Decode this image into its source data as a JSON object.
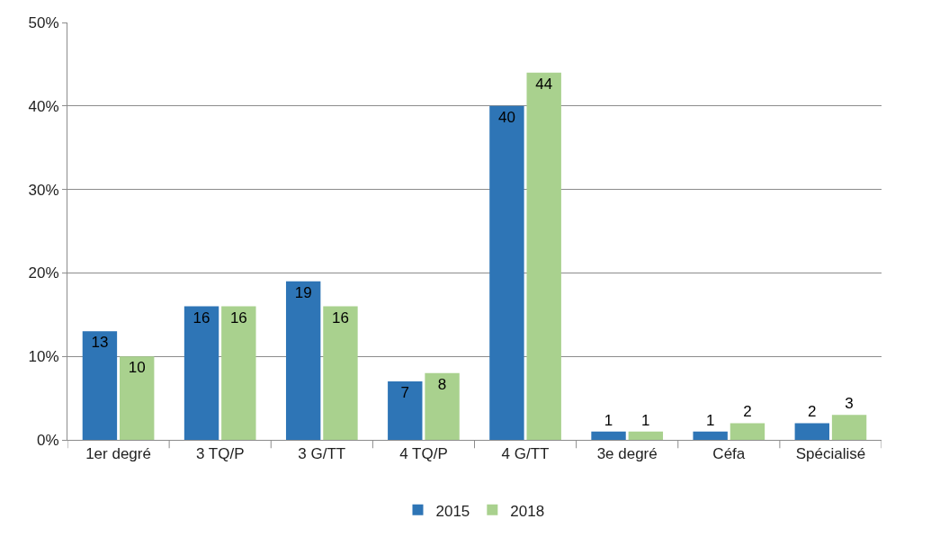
{
  "chart_data": {
    "type": "bar",
    "categories": [
      "1er degré",
      "3 TQ/P",
      "3 G/TT",
      "4 TQ/P",
      "4 G/TT",
      "3e degré",
      "Céfa",
      "Spécialisé"
    ],
    "series": [
      {
        "name": "2015",
        "color": "#2e75b6",
        "values": [
          13,
          16,
          19,
          7,
          40,
          1,
          1,
          2
        ]
      },
      {
        "name": "2018",
        "color": "#a9d18e",
        "values": [
          10,
          16,
          16,
          8,
          44,
          1,
          2,
          3
        ]
      }
    ],
    "ylim": [
      0,
      50
    ],
    "yticks": [
      {
        "value": 0,
        "label": "0%"
      },
      {
        "value": 10,
        "label": "10%"
      },
      {
        "value": 20,
        "label": "20%"
      },
      {
        "value": 30,
        "label": "30%"
      },
      {
        "value": 40,
        "label": "40%"
      },
      {
        "value": 50,
        "label": "50%"
      }
    ],
    "grid": "y",
    "legend": "bottom",
    "data_labels": true
  }
}
